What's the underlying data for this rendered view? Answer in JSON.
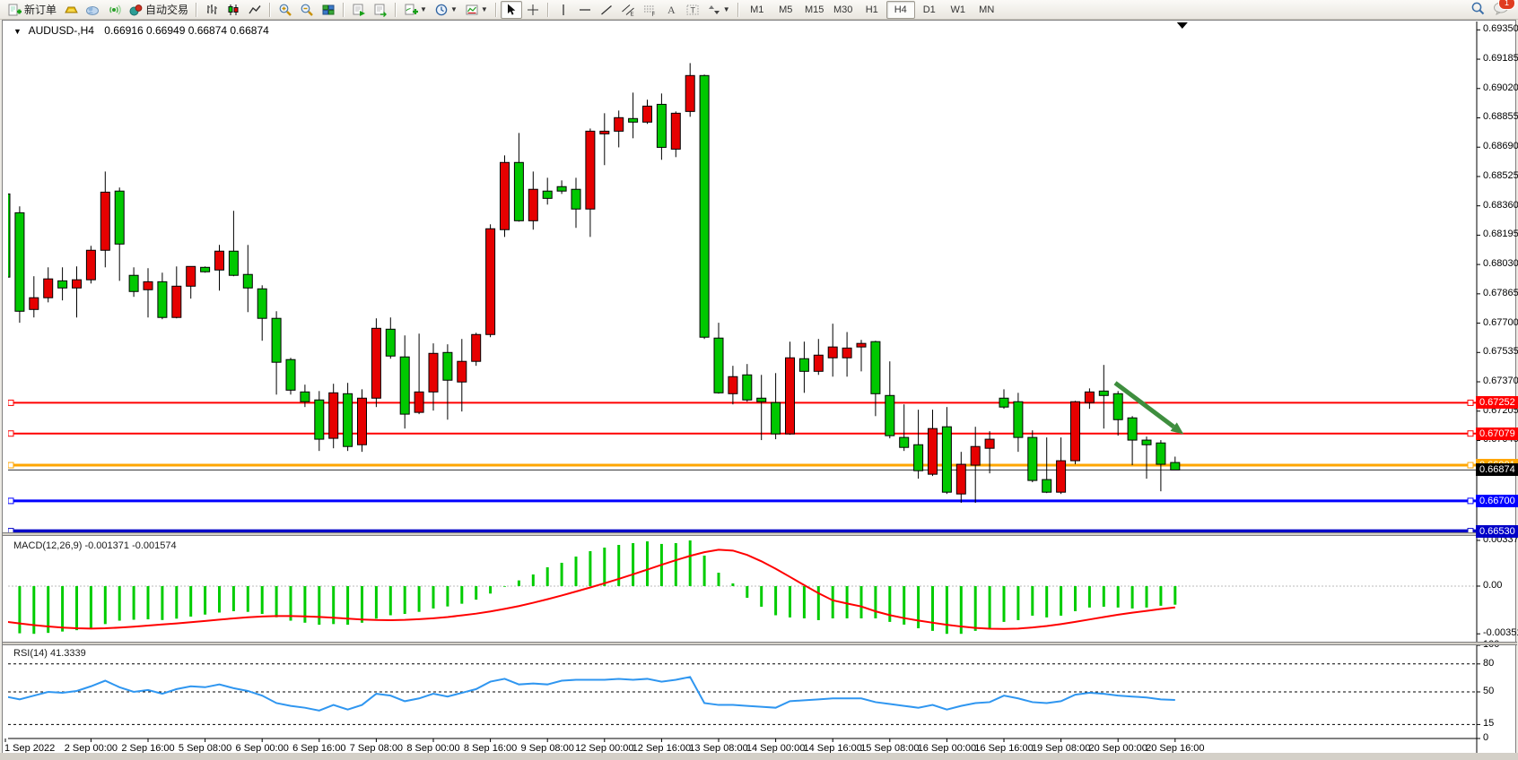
{
  "window": {
    "title_symbol": "AUDUSD-,H4",
    "ohlc_text": "0.66916 0.66949 0.66874 0.66874"
  },
  "toolbar": {
    "new_order_label": "新订单",
    "autotrade_label": "自动交易",
    "timeframes": [
      "M1",
      "M5",
      "M15",
      "M30",
      "H1",
      "H4",
      "D1",
      "W1",
      "MN"
    ],
    "active_timeframe": "H4",
    "notification_count": "1",
    "icons": [
      "new-order-icon",
      "gold-icon",
      "community-icon",
      "signal-icon",
      "autotrade-icon",
      "bar-chart-icon",
      "candlestick-chart-icon",
      "line-chart-icon",
      "zoom-in-icon",
      "zoom-out-icon",
      "tile-windows-icon",
      "auto-scroll-icon",
      "chart-shift-icon",
      "indicators-icon",
      "periods-icon",
      "templates-icon",
      "cursor-icon",
      "crosshair-icon",
      "vertical-line-icon",
      "horizontal-line-icon",
      "trendline-icon",
      "channel-icon",
      "fibonacci-icon",
      "text-icon",
      "text-label-icon",
      "arrows-icon",
      "search-icon",
      "chat-icon"
    ]
  },
  "price_axis": {
    "labels": [
      "0.69350",
      "0.69185",
      "0.69020",
      "0.68855",
      "0.68690",
      "0.68525",
      "0.68360",
      "0.68195",
      "0.68030",
      "0.67865",
      "0.67700",
      "0.67535",
      "0.67370",
      "0.67205",
      "0.67040"
    ]
  },
  "macd_axis": {
    "top": "0.003372",
    "zero": "0.00",
    "bottom": "-0.003519"
  },
  "rsi_axis": {
    "labels": [
      "100",
      "80",
      "50",
      "15",
      "0"
    ]
  },
  "indicator_labels": {
    "macd": "MACD(12,26,9) -0.001371 -0.001574",
    "rsi": "RSI(14) 41.3339"
  },
  "time_axis": {
    "labels": [
      "1 Sep 2022",
      "2 Sep 00:00",
      "2 Sep 16:00",
      "5 Sep 08:00",
      "6 Sep 00:00",
      "6 Sep 16:00",
      "7 Sep 08:00",
      "8 Sep 00:00",
      "8 Sep 16:00",
      "9 Sep 08:00",
      "12 Sep 00:00",
      "12 Sep 16:00",
      "13 Sep 08:00",
      "14 Sep 00:00",
      "14 Sep 16:00",
      "15 Sep 08:00",
      "16 Sep 00:00",
      "16 Sep 16:00",
      "19 Sep 08:00",
      "20 Sep 00:00",
      "20 Sep 16:00"
    ],
    "bar_index": [
      0,
      6,
      10,
      14,
      18,
      22,
      26,
      30,
      34,
      38,
      42,
      46,
      50,
      54,
      58,
      62,
      66,
      70,
      74,
      78,
      82
    ]
  },
  "chart_data": [
    {
      "type": "candlestick",
      "title": "AUDUSD-,H4",
      "timeframe": "H4",
      "up_color": "#E60000",
      "down_color": "#00C800",
      "ylim": [
        0.66523,
        0.69397
      ],
      "candles": [
        [
          0.68427,
          0.68453,
          0.67938,
          0.67959
        ],
        [
          0.68321,
          0.68357,
          0.67702,
          0.67767
        ],
        [
          0.67777,
          0.67964,
          0.67732,
          0.67843
        ],
        [
          0.67843,
          0.68014,
          0.67817,
          0.67949
        ],
        [
          0.67938,
          0.68014,
          0.67828,
          0.67898
        ],
        [
          0.67898,
          0.68019,
          0.67732,
          0.67944
        ],
        [
          0.67944,
          0.68135,
          0.67923,
          0.6811
        ],
        [
          0.6811,
          0.68553,
          0.68014,
          0.68437
        ],
        [
          0.68443,
          0.68463,
          0.67938,
          0.68145
        ],
        [
          0.67969,
          0.68014,
          0.67848,
          0.67878
        ],
        [
          0.67888,
          0.68009,
          0.67732,
          0.67933
        ],
        [
          0.67933,
          0.67984,
          0.67722,
          0.67732
        ],
        [
          0.67732,
          0.68019,
          0.67727,
          0.67908
        ],
        [
          0.67908,
          0.68019,
          0.67838,
          0.68019
        ],
        [
          0.68014,
          0.68019,
          0.67984,
          0.67989
        ],
        [
          0.67999,
          0.6814,
          0.67883,
          0.68105
        ],
        [
          0.68105,
          0.68332,
          0.67964,
          0.67969
        ],
        [
          0.67974,
          0.6814,
          0.67762,
          0.67898
        ],
        [
          0.67893,
          0.67913,
          0.67601,
          0.67727
        ],
        [
          0.67727,
          0.67767,
          0.67298,
          0.6748
        ],
        [
          0.67495,
          0.67505,
          0.67298,
          0.67323
        ],
        [
          0.67313,
          0.67354,
          0.67228,
          0.67258
        ],
        [
          0.67268,
          0.67318,
          0.66981,
          0.67047
        ],
        [
          0.67052,
          0.67359,
          0.66996,
          0.67308
        ],
        [
          0.67303,
          0.67364,
          0.66981,
          0.67006
        ],
        [
          0.67016,
          0.67328,
          0.66976,
          0.67278
        ],
        [
          0.67278,
          0.67727,
          0.67228,
          0.67671
        ],
        [
          0.67666,
          0.67732,
          0.675,
          0.67515
        ],
        [
          0.6751,
          0.67631,
          0.67107,
          0.67188
        ],
        [
          0.67198,
          0.67641,
          0.67188,
          0.67313
        ],
        [
          0.67313,
          0.67586,
          0.67208,
          0.6753
        ],
        [
          0.67535,
          0.67581,
          0.67157,
          0.67379
        ],
        [
          0.67369,
          0.67611,
          0.67203,
          0.67485
        ],
        [
          0.67485,
          0.67646,
          0.6746,
          0.67636
        ],
        [
          0.67636,
          0.68256,
          0.67621,
          0.68231
        ],
        [
          0.68226,
          0.68644,
          0.68185,
          0.68604
        ],
        [
          0.68604,
          0.6877,
          0.68271,
          0.68276
        ],
        [
          0.68276,
          0.68553,
          0.68226,
          0.68453
        ],
        [
          0.68443,
          0.68518,
          0.68367,
          0.68402
        ],
        [
          0.68468,
          0.68503,
          0.68427,
          0.68443
        ],
        [
          0.68453,
          0.68518,
          0.68236,
          0.68342
        ],
        [
          0.68342,
          0.68795,
          0.68185,
          0.6878
        ],
        [
          0.68765,
          0.68881,
          0.68589,
          0.6878
        ],
        [
          0.6878,
          0.68896,
          0.68689,
          0.68856
        ],
        [
          0.68851,
          0.68997,
          0.6874,
          0.68831
        ],
        [
          0.68831,
          0.68957,
          0.68821,
          0.68921
        ],
        [
          0.68931,
          0.68992,
          0.68619,
          0.68689
        ],
        [
          0.68679,
          0.68891,
          0.68634,
          0.68881
        ],
        [
          0.68891,
          0.69163,
          0.68861,
          0.69093
        ],
        [
          0.69093,
          0.69098,
          0.67611,
          0.67621
        ],
        [
          0.67616,
          0.67702,
          0.67303,
          0.67308
        ],
        [
          0.67303,
          0.6746,
          0.67243,
          0.67399
        ],
        [
          0.67409,
          0.6747,
          0.67258,
          0.67268
        ],
        [
          0.67278,
          0.67409,
          0.67042,
          0.67258
        ],
        [
          0.67253,
          0.67419,
          0.67047,
          0.67077
        ],
        [
          0.67077,
          0.67596,
          0.67072,
          0.67505
        ],
        [
          0.675,
          0.67596,
          0.67308,
          0.67429
        ],
        [
          0.67429,
          0.67611,
          0.67409,
          0.6752
        ],
        [
          0.67505,
          0.67697,
          0.67399,
          0.67566
        ],
        [
          0.67505,
          0.6765,
          0.67399,
          0.6756
        ],
        [
          0.67566,
          0.67606,
          0.67429,
          0.67586
        ],
        [
          0.67596,
          0.67601,
          0.67177,
          0.67303
        ],
        [
          0.67293,
          0.67485,
          0.67052,
          0.67067
        ],
        [
          0.67057,
          0.67243,
          0.66981,
          0.67001
        ],
        [
          0.67016,
          0.67213,
          0.66825,
          0.6687
        ],
        [
          0.6685,
          0.67213,
          0.6684,
          0.67107
        ],
        [
          0.67117,
          0.67228,
          0.66739,
          0.66749
        ],
        [
          0.66739,
          0.66976,
          0.66689,
          0.66906
        ],
        [
          0.66901,
          0.67117,
          0.66689,
          0.67006
        ],
        [
          0.66996,
          0.67092,
          0.66855,
          0.67047
        ],
        [
          0.67278,
          0.67328,
          0.67218,
          0.67228
        ],
        [
          0.67258,
          0.67308,
          0.66976,
          0.67057
        ],
        [
          0.67057,
          0.67097,
          0.66805,
          0.66815
        ],
        [
          0.6682,
          0.67057,
          0.66744,
          0.66749
        ],
        [
          0.66749,
          0.67057,
          0.66739,
          0.66926
        ],
        [
          0.66926,
          0.67263,
          0.66906,
          0.67258
        ],
        [
          0.67253,
          0.67333,
          0.67218,
          0.67313
        ],
        [
          0.67318,
          0.67465,
          0.67107,
          0.67293
        ],
        [
          0.67303,
          0.67318,
          0.67067,
          0.67157
        ],
        [
          0.67167,
          0.67177,
          0.66901,
          0.67042
        ],
        [
          0.67042,
          0.67062,
          0.66825,
          0.67016
        ],
        [
          0.67026,
          0.67042,
          0.66754,
          0.66906
        ],
        [
          0.66916,
          0.66949,
          0.66874,
          0.66874
        ]
      ],
      "hlines": [
        {
          "price": 0.67252,
          "label": "0.67252",
          "color": "#FF0000",
          "thickness": 2
        },
        {
          "price": 0.67079,
          "label": "0.67079",
          "color": "#FF0000",
          "thickness": 2
        },
        {
          "price": 0.66901,
          "label": "0.66901",
          "color": "#FFA600",
          "thickness": 3
        },
        {
          "price": 0.667,
          "label": "0.66700",
          "color": "#0000FF",
          "thickness": 3
        },
        {
          "price": 0.6653,
          "label": "0.66530",
          "color": "#0000C8",
          "thickness": 4
        }
      ],
      "bid_line": {
        "price": 0.66874,
        "label": "0.66874",
        "color": "#000000"
      },
      "trend_arrow": {
        "from_bar": 77.8,
        "from_price": 0.67364,
        "to_bar": 82.6,
        "to_price": 0.67075,
        "color": "#3E8E3E",
        "thickness": 5
      }
    },
    {
      "type": "bar",
      "name": "MACD",
      "params": "12,26,9",
      "current_values": [
        -0.001371,
        -0.001574
      ],
      "ylim": [
        -0.0041,
        0.0037
      ],
      "bar_color": "#00CC00",
      "signal_color": "#FF0000",
      "values": [
        -0.0033,
        -0.00348,
        -0.00352,
        -0.00345,
        -0.00335,
        -0.00325,
        -0.0031,
        -0.0028,
        -0.00255,
        -0.00248,
        -0.00245,
        -0.0025,
        -0.0024,
        -0.00225,
        -0.0021,
        -0.00195,
        -0.00185,
        -0.0019,
        -0.00205,
        -0.0023,
        -0.00255,
        -0.0027,
        -0.00285,
        -0.0028,
        -0.00285,
        -0.0027,
        -0.0024,
        -0.00215,
        -0.00205,
        -0.0019,
        -0.00165,
        -0.0015,
        -0.0013,
        -0.001,
        -0.00055,
        -5e-05,
        0.00042,
        0.00086,
        0.00139,
        0.00172,
        0.00218,
        0.00258,
        0.00284,
        0.00304,
        0.00317,
        0.0033,
        0.00311,
        0.00317,
        0.00337,
        0.00225,
        0.00099,
        0.0002,
        -0.00086,
        -0.00152,
        -0.00215,
        -0.00231,
        -0.00238,
        -0.00251,
        -0.00238,
        -0.00238,
        -0.00238,
        -0.00238,
        -0.00264,
        -0.00284,
        -0.00311,
        -0.0033,
        -0.00352,
        -0.00352,
        -0.0033,
        -0.00311,
        -0.00264,
        -0.00251,
        -0.00218,
        -0.00231,
        -0.00218,
        -0.00185,
        -0.00158,
        -0.00152,
        -0.00158,
        -0.00165,
        -0.00158,
        -0.00145,
        -0.00137
      ],
      "signal": [
        -0.00262,
        -0.00275,
        -0.00288,
        -0.00298,
        -0.00306,
        -0.00311,
        -0.00313,
        -0.00311,
        -0.00306,
        -0.00299,
        -0.00291,
        -0.00283,
        -0.00275,
        -0.00266,
        -0.00257,
        -0.00247,
        -0.00238,
        -0.0023,
        -0.00224,
        -0.00221,
        -0.00221,
        -0.00223,
        -0.00227,
        -0.00233,
        -0.0024,
        -0.00246,
        -0.0025,
        -0.00251,
        -0.00249,
        -0.00244,
        -0.00237,
        -0.00228,
        -0.00216,
        -0.00203,
        -0.00187,
        -0.00168,
        -0.00147,
        -0.00123,
        -0.00097,
        -0.00069,
        -0.0004,
        -0.0001,
        0.00021,
        0.00053,
        0.00087,
        0.00122,
        0.00157,
        0.00191,
        0.00223,
        0.0025,
        0.00268,
        0.00262,
        0.0023,
        0.00183,
        0.00128,
        0.00068,
        7e-05,
        -0.00052,
        -0.00105,
        -0.00128,
        -0.0015,
        -0.00186,
        -0.00214,
        -0.00236,
        -0.00254,
        -0.0027,
        -0.00285,
        -0.00298,
        -0.00308,
        -0.00314,
        -0.00316,
        -0.00313,
        -0.00305,
        -0.00294,
        -0.0028,
        -0.00264,
        -0.00246,
        -0.00228,
        -0.00211,
        -0.00196,
        -0.00183,
        -0.00169,
        -0.00157
      ]
    },
    {
      "type": "line",
      "name": "RSI",
      "params": "14",
      "current_value": 41.3339,
      "ylim": [
        0,
        100
      ],
      "levels": [
        80,
        50,
        15
      ],
      "color": "#2F96F0",
      "values": [
        45,
        42,
        46,
        50,
        49,
        51,
        56,
        62,
        55,
        50,
        52,
        48,
        53,
        56,
        55,
        58,
        54,
        51,
        46,
        38,
        35,
        33,
        30,
        36,
        31,
        36,
        48,
        46,
        40,
        43,
        48,
        45,
        49,
        53,
        61,
        64,
        58,
        59,
        58,
        62,
        63,
        63,
        63,
        64,
        63,
        64,
        61,
        63,
        66,
        38,
        36,
        36,
        35,
        34,
        33,
        40,
        41,
        42,
        43,
        43,
        43,
        39,
        37,
        35,
        33,
        36,
        31,
        35,
        38,
        39,
        46,
        43,
        39,
        38,
        40,
        47,
        49,
        48,
        46,
        45,
        44,
        42,
        41.33
      ]
    }
  ]
}
